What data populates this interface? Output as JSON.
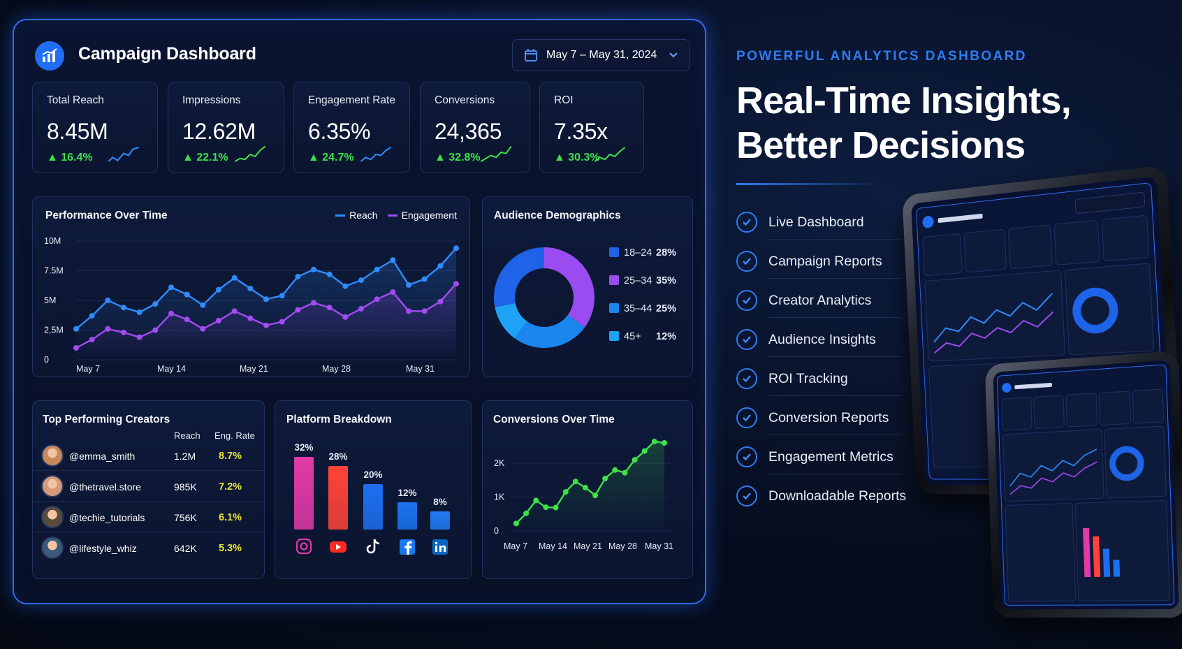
{
  "dashboard": {
    "title": "Campaign Dashboard",
    "date_range": "May 7 – May 31, 2024",
    "kpis": [
      {
        "label": "Total Reach",
        "value": "8.45M",
        "change": "16.4%"
      },
      {
        "label": "Impressions",
        "value": "12.62M",
        "change": "22.1%"
      },
      {
        "label": "Engagement Rate",
        "value": "6.35%",
        "change": "24.7%"
      },
      {
        "label": "Conversions",
        "value": "24,365",
        "change": "32.8%"
      },
      {
        "label": "ROI",
        "value": "7.35x",
        "change": "30.3%"
      }
    ],
    "performance": {
      "title": "Performance Over Time",
      "legend": [
        "Reach",
        "Engagement"
      ],
      "y_ticks": [
        "10M",
        "7.5M",
        "5M",
        "2.5M",
        "0"
      ],
      "x_ticks": [
        "May 7",
        "May 14",
        "May 21",
        "May 28",
        "May 31"
      ]
    },
    "demographics": {
      "title": "Audience Demographics",
      "items": [
        {
          "label": "18–24",
          "value": "28%"
        },
        {
          "label": "25–34",
          "value": "35%"
        },
        {
          "label": "35–44",
          "value": "25%"
        },
        {
          "label": "45+",
          "value": "12%"
        }
      ]
    },
    "creators": {
      "title": "Top Performing Creators",
      "col_reach": "Reach",
      "col_rate": "Eng. Rate",
      "rows": [
        {
          "handle": "@emma_smith",
          "reach": "1.2M",
          "rate": "8.7%"
        },
        {
          "handle": "@thetravel.store",
          "reach": "985K",
          "rate": "7.2%"
        },
        {
          "handle": "@techie_tutorials",
          "reach": "756K",
          "rate": "6.1%"
        },
        {
          "handle": "@lifestyle_whiz",
          "reach": "642K",
          "rate": "5.3%"
        }
      ]
    },
    "platforms": {
      "title": "Platform Breakdown",
      "bars": [
        {
          "label": "32%",
          "icon": "instagram-icon"
        },
        {
          "label": "28%",
          "icon": "youtube-icon"
        },
        {
          "label": "20%",
          "icon": "tiktok-icon"
        },
        {
          "label": "12%",
          "icon": "facebook-icon"
        },
        {
          "label": "8%",
          "icon": "linkedin-icon"
        }
      ]
    },
    "conversions": {
      "title": "Conversions Over Time",
      "y_ticks": [
        "2K",
        "1K",
        "0"
      ],
      "x_ticks": [
        "May 7",
        "May 14",
        "May 21",
        "May 28",
        "May 31"
      ]
    }
  },
  "chart_data": [
    {
      "type": "line",
      "title": "Performance Over Time",
      "ylim": [
        0,
        10000000
      ],
      "x_count": 25,
      "series": [
        {
          "name": "Reach",
          "color": "#2f8cff",
          "values": [
            2.6,
            3.7,
            5.0,
            4.4,
            4.0,
            4.7,
            6.1,
            5.5,
            4.6,
            5.9,
            6.9,
            6.0,
            5.1,
            5.4,
            7.0,
            7.6,
            7.2,
            6.2,
            6.7,
            7.6,
            8.4,
            6.3,
            6.8,
            7.9,
            9.4
          ]
        },
        {
          "name": "Engagement",
          "color": "#a24bf0",
          "values": [
            1.0,
            1.7,
            2.6,
            2.3,
            1.9,
            2.5,
            3.9,
            3.4,
            2.6,
            3.3,
            4.1,
            3.5,
            2.9,
            3.2,
            4.2,
            4.8,
            4.4,
            3.6,
            4.3,
            5.1,
            5.7,
            4.1,
            4.1,
            4.9,
            6.4
          ]
        }
      ]
    },
    {
      "type": "pie",
      "title": "Audience Demographics",
      "categories": [
        "18–24",
        "25–34",
        "35–44",
        "45+"
      ],
      "values": [
        28,
        35,
        25,
        12
      ],
      "colors": [
        "#1e63e8",
        "#9a4cf0",
        "#1b86f0",
        "#1ea2f5"
      ]
    },
    {
      "type": "bar",
      "title": "Platform Breakdown",
      "categories": [
        "Instagram",
        "YouTube",
        "TikTok",
        "Facebook",
        "LinkedIn"
      ],
      "values": [
        32,
        28,
        20,
        12,
        8
      ],
      "colors": [
        "#e23aa8",
        "#ff4338",
        "#1e6ff0",
        "#1a74f0",
        "#1e7bf2"
      ]
    },
    {
      "type": "line",
      "title": "Conversions Over Time",
      "ylim": [
        0,
        2600
      ],
      "x_count": 16,
      "series": [
        {
          "name": "Conversions",
          "color": "#3ee04a",
          "values": [
            220,
            520,
            900,
            700,
            690,
            1150,
            1460,
            1280,
            1050,
            1550,
            1800,
            1720,
            2100,
            2360,
            2640,
            2600
          ]
        }
      ]
    }
  ],
  "promo": {
    "kicker": "POWERFUL ANALYTICS DASHBOARD",
    "headline_1": "Real-Time Insights,",
    "headline_2": "Better Decisions",
    "features": [
      "Live Dashboard",
      "Campaign Reports",
      "Creator Analytics",
      "Audience Insights",
      "ROI Tracking",
      "Conversion Reports",
      "Engagement Metrics",
      "Downloadable Reports"
    ]
  }
}
